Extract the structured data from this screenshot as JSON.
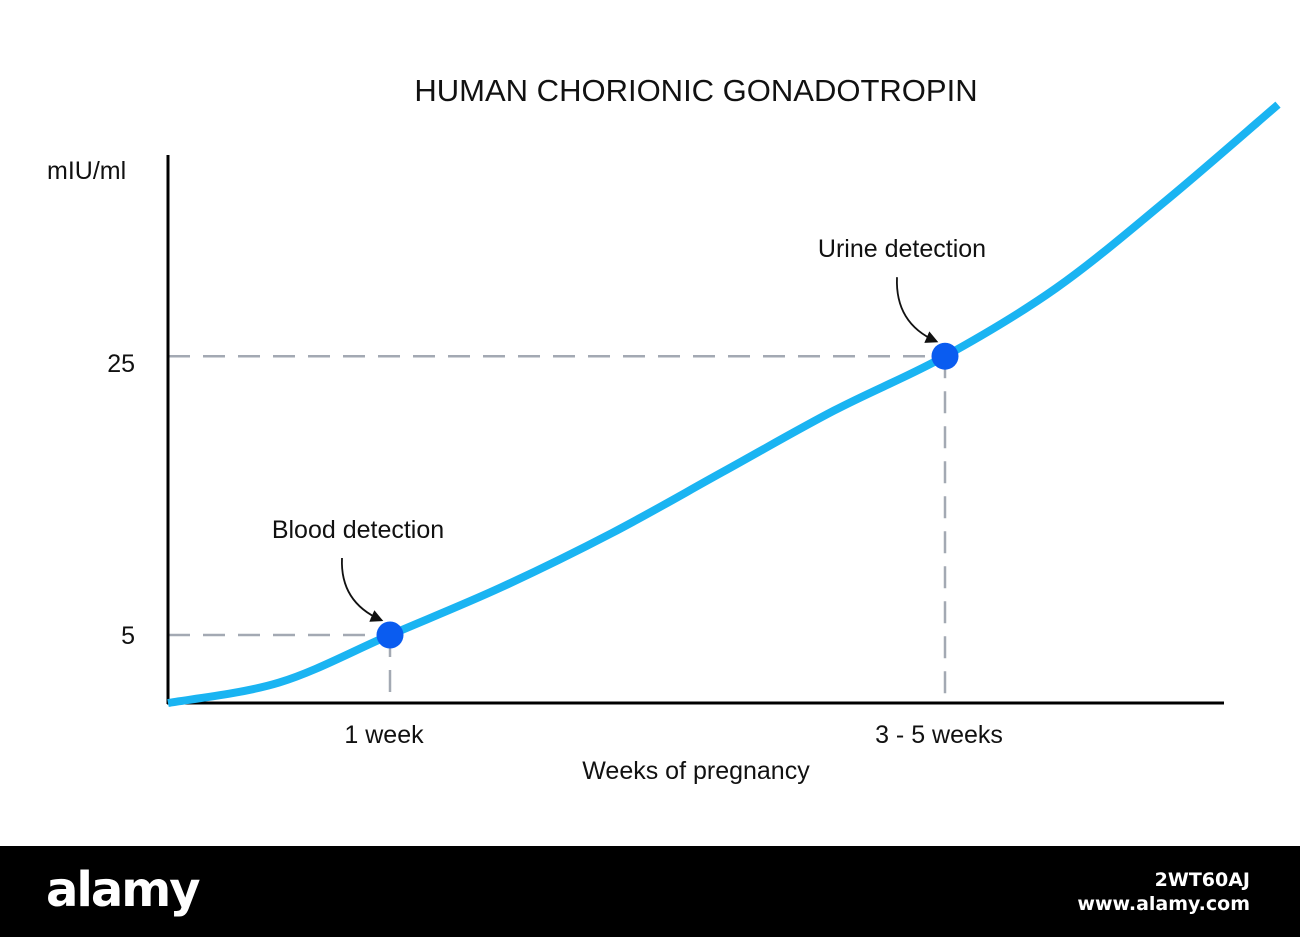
{
  "chart_data": {
    "type": "line",
    "title": "HUMAN CHORIONIC GONADOTROPIN",
    "xlabel": "Weeks of pregnancy",
    "ylabel": "mIU/ml",
    "x_ticks": [
      "1 week",
      "3 - 5 weeks"
    ],
    "y_ticks": [
      "5",
      "25"
    ],
    "grid": false,
    "series": [
      {
        "color": "#1ab4f2",
        "points": [
          {
            "x": 0,
            "y": 0.0
          },
          {
            "x": 0.5,
            "y": 1.5
          },
          {
            "x": 1.0,
            "y": 5.0
          },
          {
            "x": 1.5,
            "y": 8.5
          },
          {
            "x": 2.0,
            "y": 12.5
          },
          {
            "x": 2.5,
            "y": 17.0
          },
          {
            "x": 3.0,
            "y": 21.5
          },
          {
            "x": 3.5,
            "y": 25.5
          },
          {
            "x": 4.0,
            "y": 30.5
          },
          {
            "x": 4.5,
            "y": 37.0
          },
          {
            "x": 5.0,
            "y": 44.0
          }
        ]
      }
    ],
    "markers": [
      {
        "label": "Blood detection",
        "x": 1.0,
        "y": 5.0,
        "color": "#0a5cf0"
      },
      {
        "label": "Urine detection",
        "x": 3.5,
        "y": 25.5,
        "color": "#0a5cf0"
      }
    ],
    "reference_line_color": "#a3a9b3"
  },
  "watermark": {
    "logo": "alamy",
    "image_id": "2WT60AJ",
    "site": "www.alamy.com"
  }
}
